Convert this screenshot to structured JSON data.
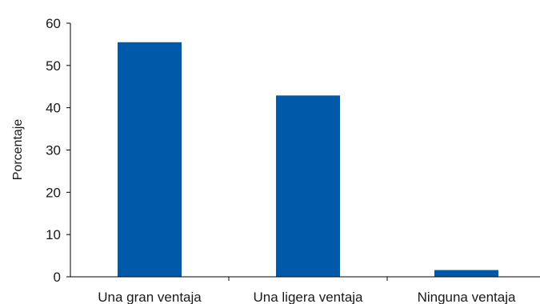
{
  "chart_data": {
    "type": "bar",
    "title": "",
    "xlabel": "",
    "ylabel": "Porcentaje",
    "ylim": [
      0,
      60
    ],
    "yticks": [
      0,
      10,
      20,
      30,
      40,
      50,
      60
    ],
    "grid": false,
    "categories": [
      "Una gran ventaja",
      "Una ligera ventaja",
      "Ninguna ventaja"
    ],
    "values": [
      55.5,
      42.9,
      1.6
    ],
    "bar_color": "#005aa9"
  }
}
